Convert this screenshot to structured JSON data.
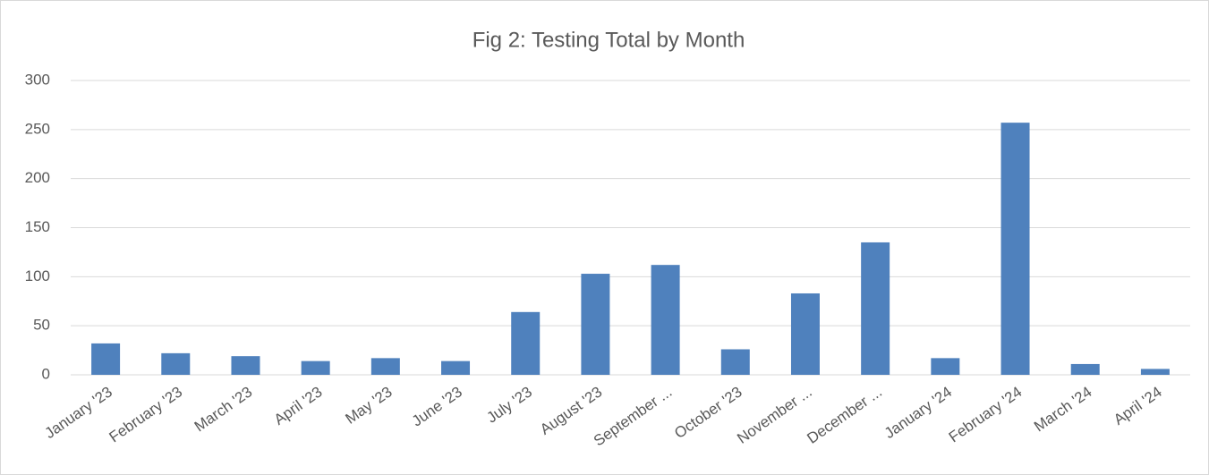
{
  "chart_data": {
    "type": "bar",
    "title": "Fig 2: Testing Total by Month",
    "categories": [
      "January '23",
      "February '23",
      "March '23",
      "April '23",
      "May '23",
      "June '23",
      "July '23",
      "August '23",
      "September ...",
      "October '23",
      "November ...",
      "December ...",
      "January '24",
      "February '24",
      "March '24",
      "April '24"
    ],
    "values": [
      32,
      22,
      19,
      14,
      17,
      14,
      64,
      103,
      112,
      26,
      83,
      135,
      17,
      257,
      11,
      6
    ],
    "color": "#4f81bd",
    "ylim": [
      0,
      300
    ],
    "yticks": [
      0,
      50,
      100,
      150,
      200,
      250,
      300
    ],
    "grid": true
  }
}
